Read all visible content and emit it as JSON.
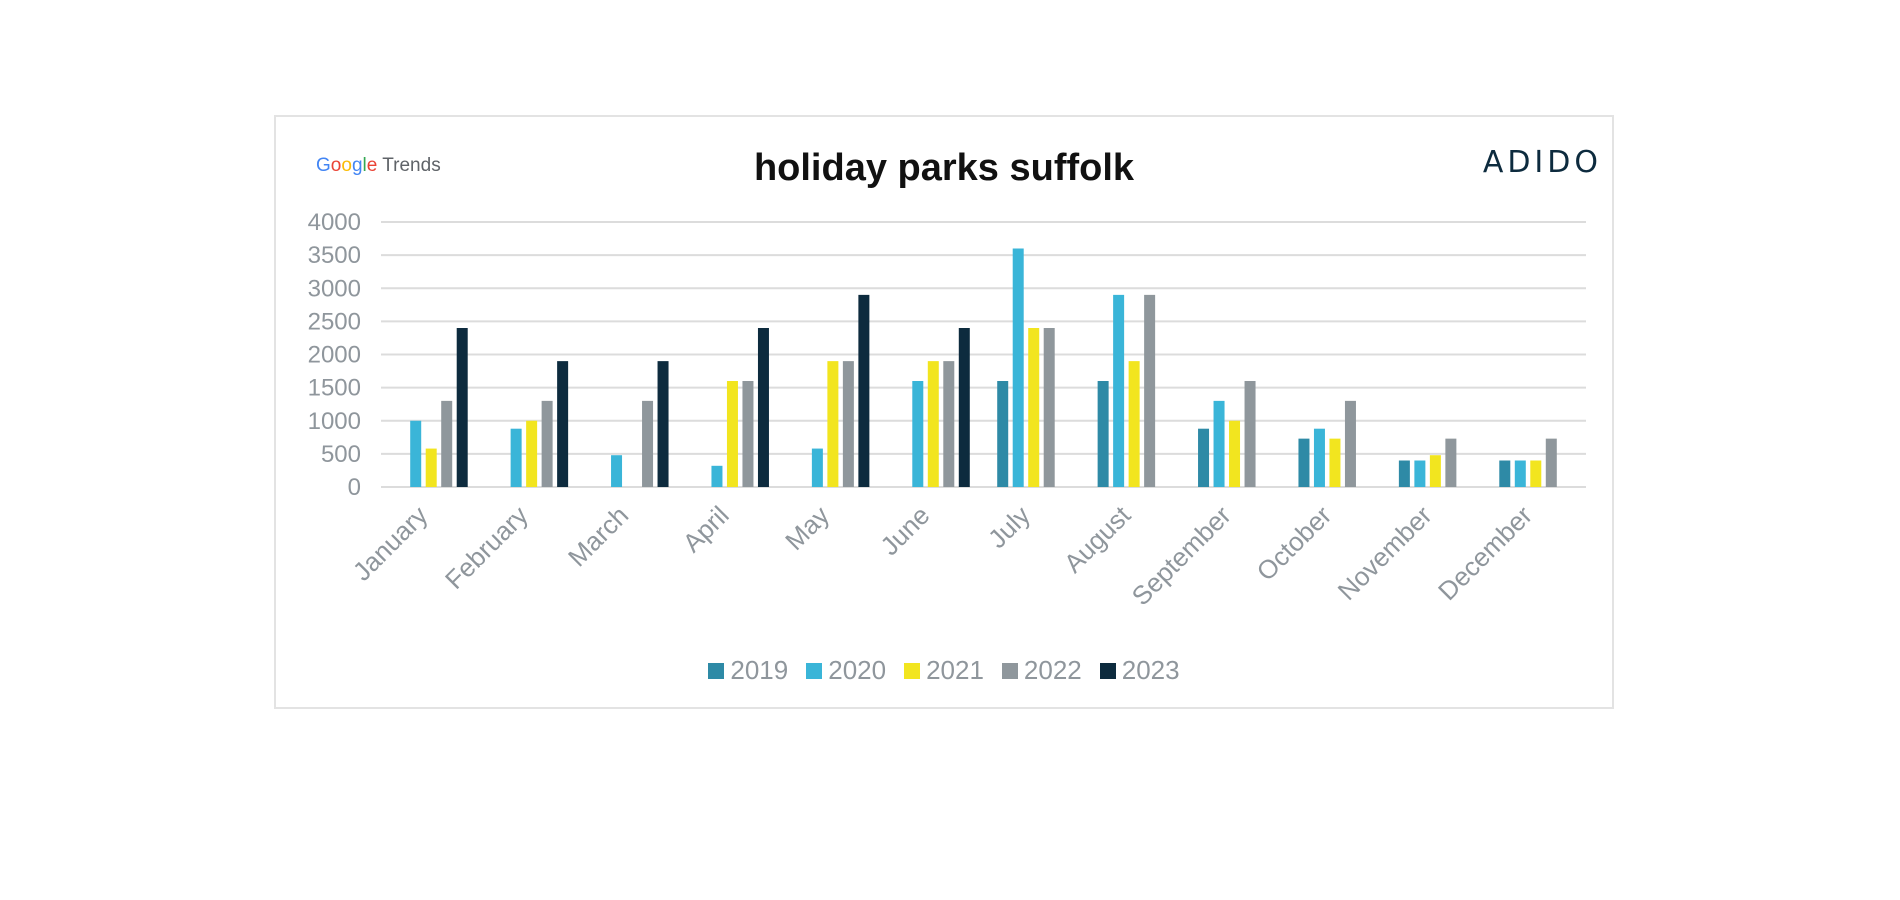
{
  "branding": {
    "google_word": "Google",
    "trends_word": "Trends",
    "google_colors": [
      "#4285F4",
      "#EA4335",
      "#FBBC05",
      "#4285F4",
      "#34A853",
      "#EA4335"
    ],
    "adido_logo": "ADIDO",
    "adido_color": "#0d2b3e"
  },
  "chart_data": {
    "type": "bar",
    "title": "holiday parks suffolk",
    "xlabel": "",
    "ylabel": "",
    "ylim": [
      0,
      4000
    ],
    "yticks": [
      0,
      500,
      1000,
      1500,
      2000,
      2500,
      3000,
      3500,
      4000
    ],
    "grid": true,
    "legend_position": "bottom",
    "categories": [
      "January",
      "February",
      "March",
      "April",
      "May",
      "June",
      "July",
      "August",
      "September",
      "October",
      "November",
      "December"
    ],
    "series": [
      {
        "name": "2019",
        "color": "#2e8aa6",
        "values": [
          null,
          null,
          null,
          null,
          null,
          null,
          1600,
          1600,
          880,
          730,
          400,
          400
        ]
      },
      {
        "name": "2020",
        "color": "#3ab5d8",
        "values": [
          1000,
          880,
          480,
          320,
          580,
          1600,
          3600,
          2900,
          1300,
          880,
          400,
          400
        ]
      },
      {
        "name": "2021",
        "color": "#f2e51f",
        "values": [
          580,
          1000,
          null,
          1600,
          1900,
          1900,
          2400,
          1900,
          1000,
          730,
          480,
          400
        ]
      },
      {
        "name": "2022",
        "color": "#8f979c",
        "values": [
          1300,
          1300,
          1300,
          1600,
          1900,
          1900,
          2400,
          2900,
          1600,
          1300,
          730,
          730
        ]
      },
      {
        "name": "2023",
        "color": "#0d2b3e",
        "values": [
          2400,
          1900,
          1900,
          2400,
          2900,
          2400,
          null,
          null,
          null,
          null,
          null,
          null
        ]
      }
    ]
  }
}
